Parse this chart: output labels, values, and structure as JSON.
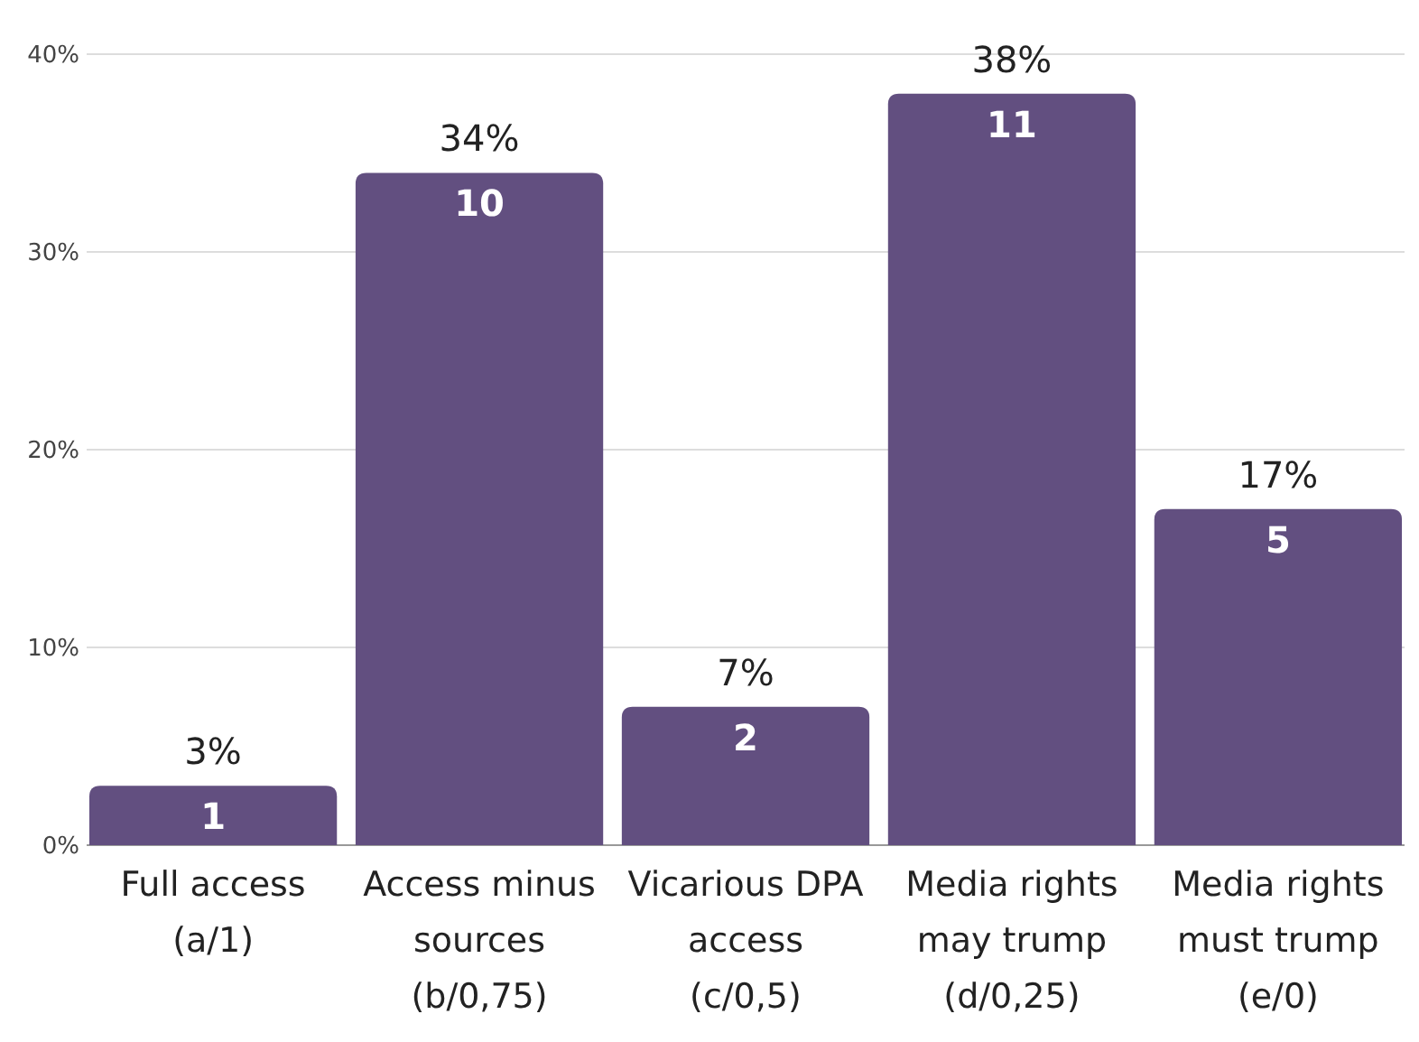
{
  "chart_data": {
    "type": "bar",
    "categories": [
      "Full access (a/1)",
      "Access minus sources (b/0,75)",
      "Vicarious DPA access (c/0,5)",
      "Media rights may trump (d/0,25)",
      "Media rights must trump (e/0)"
    ],
    "values": [
      3,
      34,
      7,
      38,
      17
    ],
    "value_labels": [
      "3%",
      "34%",
      "7%",
      "38%",
      "17%"
    ],
    "color": "#624f80",
    "ylim": [
      0,
      40
    ],
    "yticks": [
      {
        "value": 0,
        "label": "0%"
      },
      {
        "value": 10,
        "label": "10%"
      },
      {
        "value": 20,
        "label": "20%"
      },
      {
        "value": 30,
        "label": "30%"
      },
      {
        "value": 40,
        "label": "40%"
      }
    ],
    "grid": true,
    "annotations": [
      {
        "text": "1",
        "x": "Full access (a/1)",
        "y": 3
      },
      {
        "text": "10",
        "x": "Access minus sources (b/0,75)",
        "y": 34
      },
      {
        "text": "2",
        "x": "Vicarious DPA access (c/0,5)",
        "y": 7
      },
      {
        "text": "11",
        "x": "Media rights may trump (d/0,25)",
        "y": 38
      },
      {
        "text": "5",
        "x": "Media rights must trump (e/0)",
        "y": 17
      }
    ]
  }
}
